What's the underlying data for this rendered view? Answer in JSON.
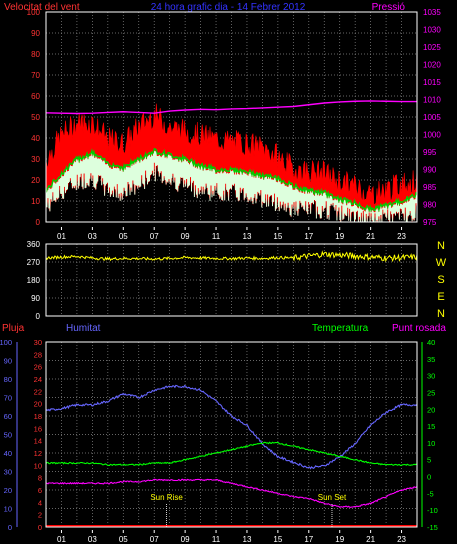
{
  "header": {
    "left_title": "Velocitat del vent",
    "center_title": "24 hora grafic dia - 14 Febrer 2012",
    "right_title": "Pressió"
  },
  "compass": [
    "N",
    "W",
    "S",
    "E",
    "N"
  ],
  "bottom_labels": {
    "pluja": "Pluja",
    "humitat": "Humitat",
    "temperatura": "Temperatura",
    "punt_rosada": "Punt rosada",
    "sun_rise": "Sun Rise",
    "sun_set": "Sun Set"
  },
  "colors": {
    "wind_max": "#ff0000",
    "wind_avg": "#00cc00",
    "wind_min": "#ddffdd",
    "pressure": "#ff00ff",
    "direction": "#ffff00",
    "humidity": "#6666ff",
    "temperature": "#00ff00",
    "dewpoint": "#ff00ff",
    "rain": "#ff0000",
    "axis_left_wind": "#ff3333",
    "axis_right_pressure": "#ff00ff",
    "axis_rain": "#ff3333",
    "axis_humidity": "#6666ff",
    "axis_temp": "#00ff00"
  },
  "chart_data": [
    {
      "type": "line",
      "x_ticks": [
        "01",
        "03",
        "05",
        "07",
        "09",
        "11",
        "13",
        "15",
        "17",
        "19",
        "21",
        "23"
      ],
      "y_left": {
        "ticks": [
          0,
          10,
          20,
          30,
          40,
          50,
          60,
          70,
          80,
          90,
          100
        ],
        "ylim": [
          0,
          100
        ]
      },
      "y_right": {
        "ticks": [
          975,
          980,
          985,
          990,
          995,
          1000,
          1005,
          1010,
          1015,
          1020,
          1025,
          1030,
          1035
        ],
        "ylim": [
          975,
          1035
        ]
      },
      "x_hours": [
        0,
        1,
        2,
        3,
        4,
        5,
        6,
        7,
        8,
        9,
        10,
        11,
        12,
        13,
        14,
        15,
        16,
        17,
        18,
        19,
        20,
        21,
        22,
        23,
        24
      ],
      "series": [
        {
          "key": "max",
          "values": [
            28,
            40,
            46,
            46,
            38,
            36,
            44,
            50,
            44,
            42,
            40,
            38,
            37,
            36,
            34,
            30,
            24,
            23,
            22,
            18,
            16,
            12,
            14,
            17,
            18
          ]
        },
        {
          "key": "avg",
          "values": [
            15,
            23,
            30,
            33,
            28,
            26,
            30,
            34,
            32,
            30,
            27,
            25,
            25,
            24,
            22,
            21,
            17,
            15,
            14,
            11,
            9,
            6,
            8,
            10,
            13
          ]
        },
        {
          "key": "min",
          "values": [
            8,
            15,
            20,
            22,
            16,
            15,
            18,
            25,
            21,
            19,
            16,
            15,
            15,
            14,
            12,
            10,
            7,
            7,
            7,
            5,
            3,
            1,
            3,
            4,
            6
          ]
        },
        {
          "key": "pressure",
          "axis": "right",
          "values": [
            1006.2,
            1006.1,
            1006.0,
            1006.1,
            1006.3,
            1006.5,
            1006.3,
            1006.1,
            1006.7,
            1007.0,
            1007.2,
            1007.1,
            1007.3,
            1007.4,
            1007.6,
            1007.8,
            1008.0,
            1008.5,
            1009.0,
            1009.3,
            1009.5,
            1009.6,
            1009.5,
            1009.4,
            1009.4
          ]
        }
      ]
    },
    {
      "type": "line",
      "y_ticks": [
        0,
        90,
        180,
        270,
        360
      ],
      "ylim": [
        0,
        360
      ],
      "x_hours": [
        0,
        1,
        2,
        3,
        4,
        5,
        6,
        7,
        8,
        9,
        10,
        11,
        12,
        13,
        14,
        15,
        16,
        17,
        18,
        19,
        20,
        21,
        22,
        23,
        24
      ],
      "series": [
        {
          "key": "direction",
          "values": [
            290,
            295,
            298,
            290,
            285,
            288,
            287,
            285,
            288,
            292,
            290,
            288,
            287,
            290,
            288,
            292,
            290,
            300,
            310,
            305,
            300,
            295,
            290,
            292,
            295
          ]
        }
      ]
    },
    {
      "type": "line",
      "axis_rain": {
        "ticks": [
          0,
          2,
          4,
          6,
          8,
          10,
          12,
          14,
          16,
          18,
          20,
          22,
          24,
          26,
          28,
          30
        ],
        "ylim": [
          0,
          30
        ]
      },
      "axis_humidity": {
        "ticks": [
          0,
          10,
          20,
          30,
          40,
          50,
          60,
          70,
          80,
          90,
          100
        ],
        "ylim": [
          0,
          100
        ]
      },
      "axis_temp": {
        "ticks": [
          -15,
          -10,
          -5,
          0,
          5,
          10,
          15,
          20,
          25,
          30,
          35,
          40
        ],
        "ylim": [
          -15,
          40
        ]
      },
      "x_hours": [
        0,
        1,
        2,
        3,
        4,
        5,
        6,
        7,
        8,
        9,
        10,
        11,
        12,
        13,
        14,
        15,
        16,
        17,
        18,
        19,
        20,
        21,
        22,
        23,
        24
      ],
      "series": [
        {
          "key": "humidity",
          "axis": "humidity",
          "values": [
            63,
            64,
            66,
            66,
            68,
            72,
            70,
            74,
            76,
            76,
            74,
            68,
            60,
            55,
            45,
            38,
            35,
            32,
            33,
            38,
            45,
            55,
            62,
            66,
            66
          ]
        },
        {
          "key": "temperature",
          "axis": "temp",
          "values": [
            4,
            4,
            4,
            4,
            3.5,
            3.5,
            3.5,
            4,
            4,
            5,
            6,
            7,
            8,
            9,
            10,
            10,
            9,
            8,
            7,
            6,
            5,
            4,
            3.5,
            3.5,
            3.5
          ]
        },
        {
          "key": "dewpoint",
          "axis": "temp",
          "values": [
            -2,
            -2,
            -2,
            -2,
            -2,
            -1.5,
            -1.5,
            -1,
            -1,
            -1,
            -1,
            -1,
            -2,
            -3,
            -4,
            -5,
            -6,
            -6.5,
            -8,
            -9,
            -9,
            -8,
            -6,
            -4,
            -3
          ]
        },
        {
          "key": "rain",
          "axis": "rain",
          "values": [
            0,
            0,
            0,
            0,
            0,
            0,
            0,
            0,
            0,
            0,
            0,
            0,
            0,
            0,
            0,
            0,
            0,
            0,
            0,
            0,
            0,
            0,
            0,
            0,
            0
          ]
        }
      ],
      "sun_rise_hour": 7.8,
      "sun_set_hour": 18.5
    }
  ]
}
